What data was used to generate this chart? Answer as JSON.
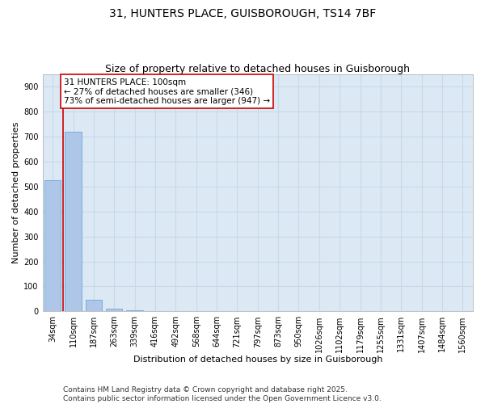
{
  "title": "31, HUNTERS PLACE, GUISBOROUGH, TS14 7BF",
  "subtitle": "Size of property relative to detached houses in Guisborough",
  "xlabel": "Distribution of detached houses by size in Guisborough",
  "ylabel": "Number of detached properties",
  "categories": [
    "34sqm",
    "110sqm",
    "187sqm",
    "263sqm",
    "339sqm",
    "416sqm",
    "492sqm",
    "568sqm",
    "644sqm",
    "721sqm",
    "797sqm",
    "873sqm",
    "950sqm",
    "1026sqm",
    "1102sqm",
    "1179sqm",
    "1255sqm",
    "1331sqm",
    "1407sqm",
    "1484sqm",
    "1560sqm"
  ],
  "values": [
    525,
    720,
    45,
    10,
    5,
    0,
    0,
    0,
    0,
    0,
    0,
    0,
    0,
    0,
    0,
    0,
    0,
    0,
    0,
    0,
    0
  ],
  "bar_color": "#aec6e8",
  "bar_edgecolor": "#5a9fd4",
  "vline_color": "#cc0000",
  "annotation_text": "31 HUNTERS PLACE: 100sqm\n← 27% of detached houses are smaller (346)\n73% of semi-detached houses are larger (947) →",
  "annotation_box_color": "#cc0000",
  "ylim": [
    0,
    950
  ],
  "yticks": [
    0,
    100,
    200,
    300,
    400,
    500,
    600,
    700,
    800,
    900
  ],
  "grid_color": "#c8d8e8",
  "background_color": "#dce9f5",
  "footer_text": "Contains HM Land Registry data © Crown copyright and database right 2025.\nContains public sector information licensed under the Open Government Licence v3.0.",
  "title_fontsize": 10,
  "subtitle_fontsize": 9,
  "xlabel_fontsize": 8,
  "ylabel_fontsize": 8,
  "tick_fontsize": 7,
  "annotation_fontsize": 7.5,
  "footer_fontsize": 6.5
}
